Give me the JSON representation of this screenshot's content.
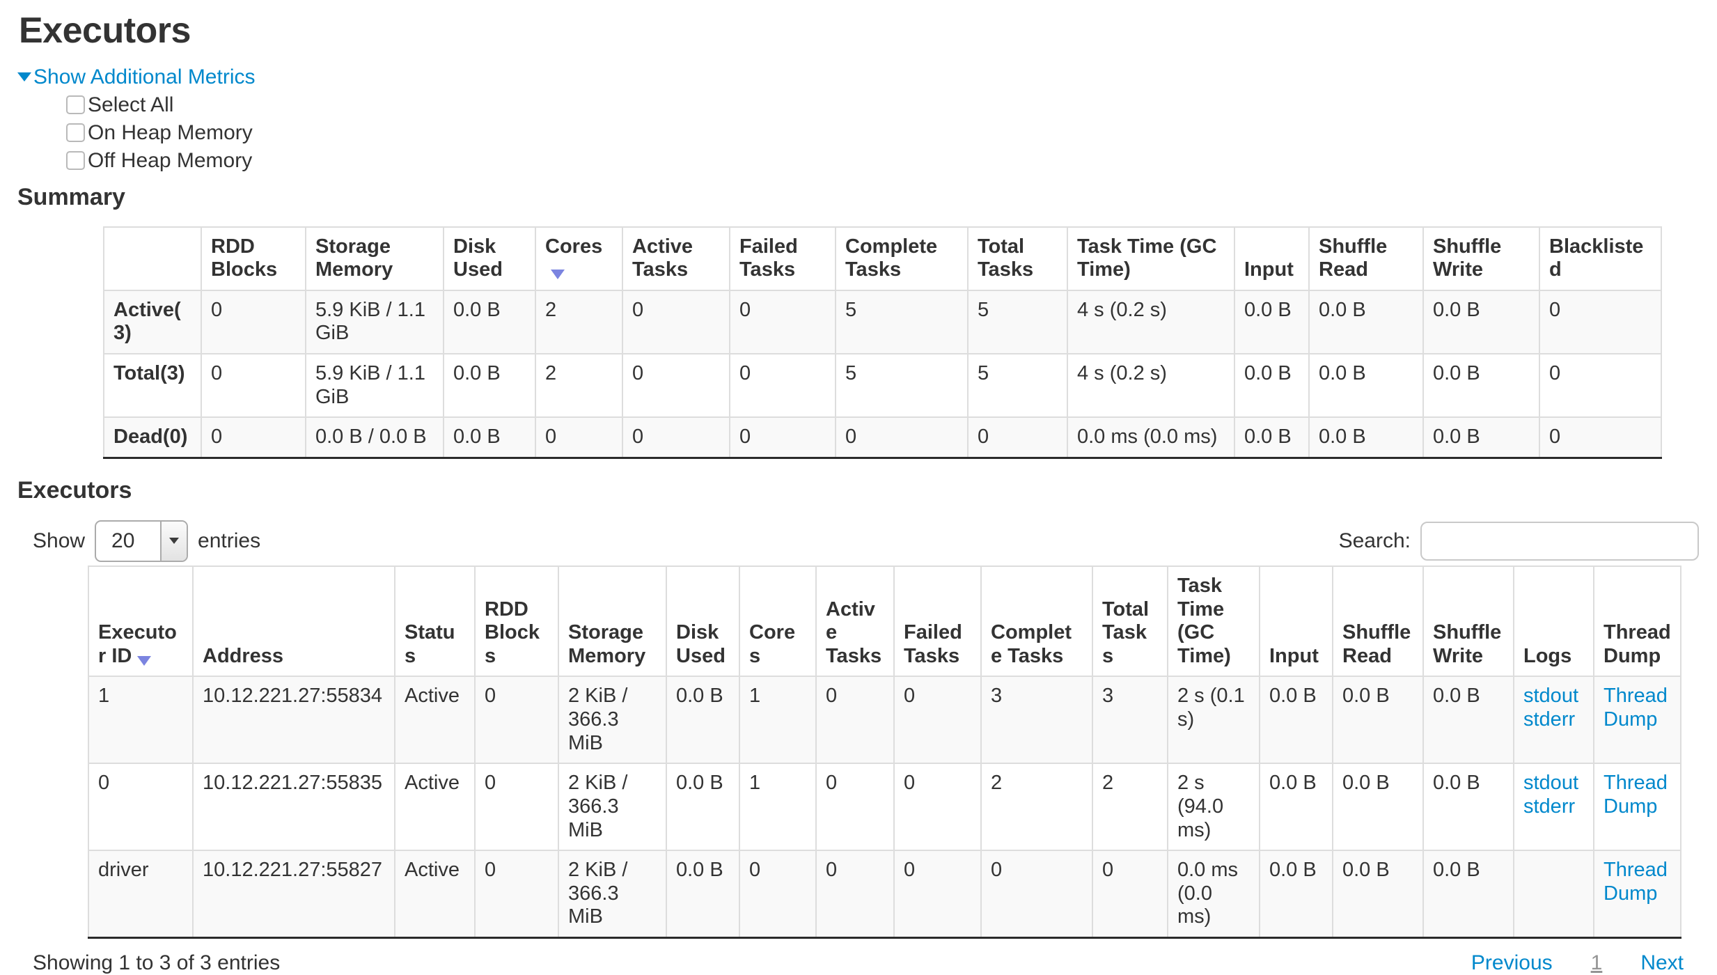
{
  "page": {
    "title": "Executors"
  },
  "additional_metrics": {
    "toggle_label": "Show Additional Metrics",
    "items": [
      {
        "label": "Select All",
        "checked": false
      },
      {
        "label": "On Heap Memory",
        "checked": false
      },
      {
        "label": "Off Heap Memory",
        "checked": false
      }
    ]
  },
  "summary": {
    "heading": "Summary",
    "columns": [
      "",
      "RDD Blocks",
      "Storage Memory",
      "Disk Used",
      "Cores",
      "Active Tasks",
      "Failed Tasks",
      "Complete Tasks",
      "Total Tasks",
      "Task Time (GC Time)",
      "Input",
      "Shuffle Read",
      "Shuffle Write",
      "Blacklisted"
    ],
    "sorted_column": "Cores",
    "sort_direction": "desc",
    "rows": [
      {
        "label": "Active(3)",
        "values": [
          "0",
          "5.9 KiB / 1.1 GiB",
          "0.0 B",
          "2",
          "0",
          "0",
          "5",
          "5",
          "4 s (0.2 s)",
          "0.0 B",
          "0.0 B",
          "0.0 B",
          "0"
        ]
      },
      {
        "label": "Total(3)",
        "values": [
          "0",
          "5.9 KiB / 1.1 GiB",
          "0.0 B",
          "2",
          "0",
          "0",
          "5",
          "5",
          "4 s (0.2 s)",
          "0.0 B",
          "0.0 B",
          "0.0 B",
          "0"
        ]
      },
      {
        "label": "Dead(0)",
        "values": [
          "0",
          "0.0 B / 0.0 B",
          "0.0 B",
          "0",
          "0",
          "0",
          "0",
          "0",
          "0.0 ms (0.0 ms)",
          "0.0 B",
          "0.0 B",
          "0.0 B",
          "0"
        ]
      }
    ]
  },
  "executors_table": {
    "heading": "Executors",
    "length_control": {
      "show_label": "Show",
      "selected": "20",
      "entries_label": "entries"
    },
    "search": {
      "label": "Search:",
      "value": ""
    },
    "columns": [
      "Executor ID",
      "Address",
      "Status",
      "RDD Blocks",
      "Storage Memory",
      "Disk Used",
      "Cores",
      "Active Tasks",
      "Failed Tasks",
      "Complete Tasks",
      "Total Tasks",
      "Task Time (GC Time)",
      "Input",
      "Shuffle Read",
      "Shuffle Write",
      "Logs",
      "Thread Dump"
    ],
    "sorted_column": "Executor ID",
    "sort_direction": "desc",
    "rows": [
      {
        "cells": [
          "1",
          "10.12.221.27:55834",
          "Active",
          "0",
          "2 KiB / 366.3 MiB",
          "0.0 B",
          "1",
          "0",
          "0",
          "3",
          "3",
          "2 s (0.1 s)",
          "0.0 B",
          "0.0 B",
          "0.0 B"
        ],
        "logs": [
          "stdout",
          "stderr"
        ],
        "thread_dump": "Thread Dump"
      },
      {
        "cells": [
          "0",
          "10.12.221.27:55835",
          "Active",
          "0",
          "2 KiB / 366.3 MiB",
          "0.0 B",
          "1",
          "0",
          "0",
          "2",
          "2",
          "2 s (94.0 ms)",
          "0.0 B",
          "0.0 B",
          "0.0 B"
        ],
        "logs": [
          "stdout",
          "stderr"
        ],
        "thread_dump": "Thread Dump"
      },
      {
        "cells": [
          "driver",
          "10.12.221.27:55827",
          "Active",
          "0",
          "2 KiB / 366.3 MiB",
          "0.0 B",
          "0",
          "0",
          "0",
          "0",
          "0",
          "0.0 ms (0.0 ms)",
          "0.0 B",
          "0.0 B",
          "0.0 B"
        ],
        "logs": [],
        "thread_dump": "Thread Dump"
      }
    ],
    "footer": {
      "info": "Showing 1 to 3 of 3 entries",
      "previous_label": "Previous",
      "current_page": "1",
      "next_label": "Next"
    }
  },
  "colors": {
    "link_blue": "#0088cc",
    "sort_arrow": "#7b84e0",
    "stripe": "#f9f9f9",
    "table_border": "#dddddd",
    "text": "#333333"
  }
}
